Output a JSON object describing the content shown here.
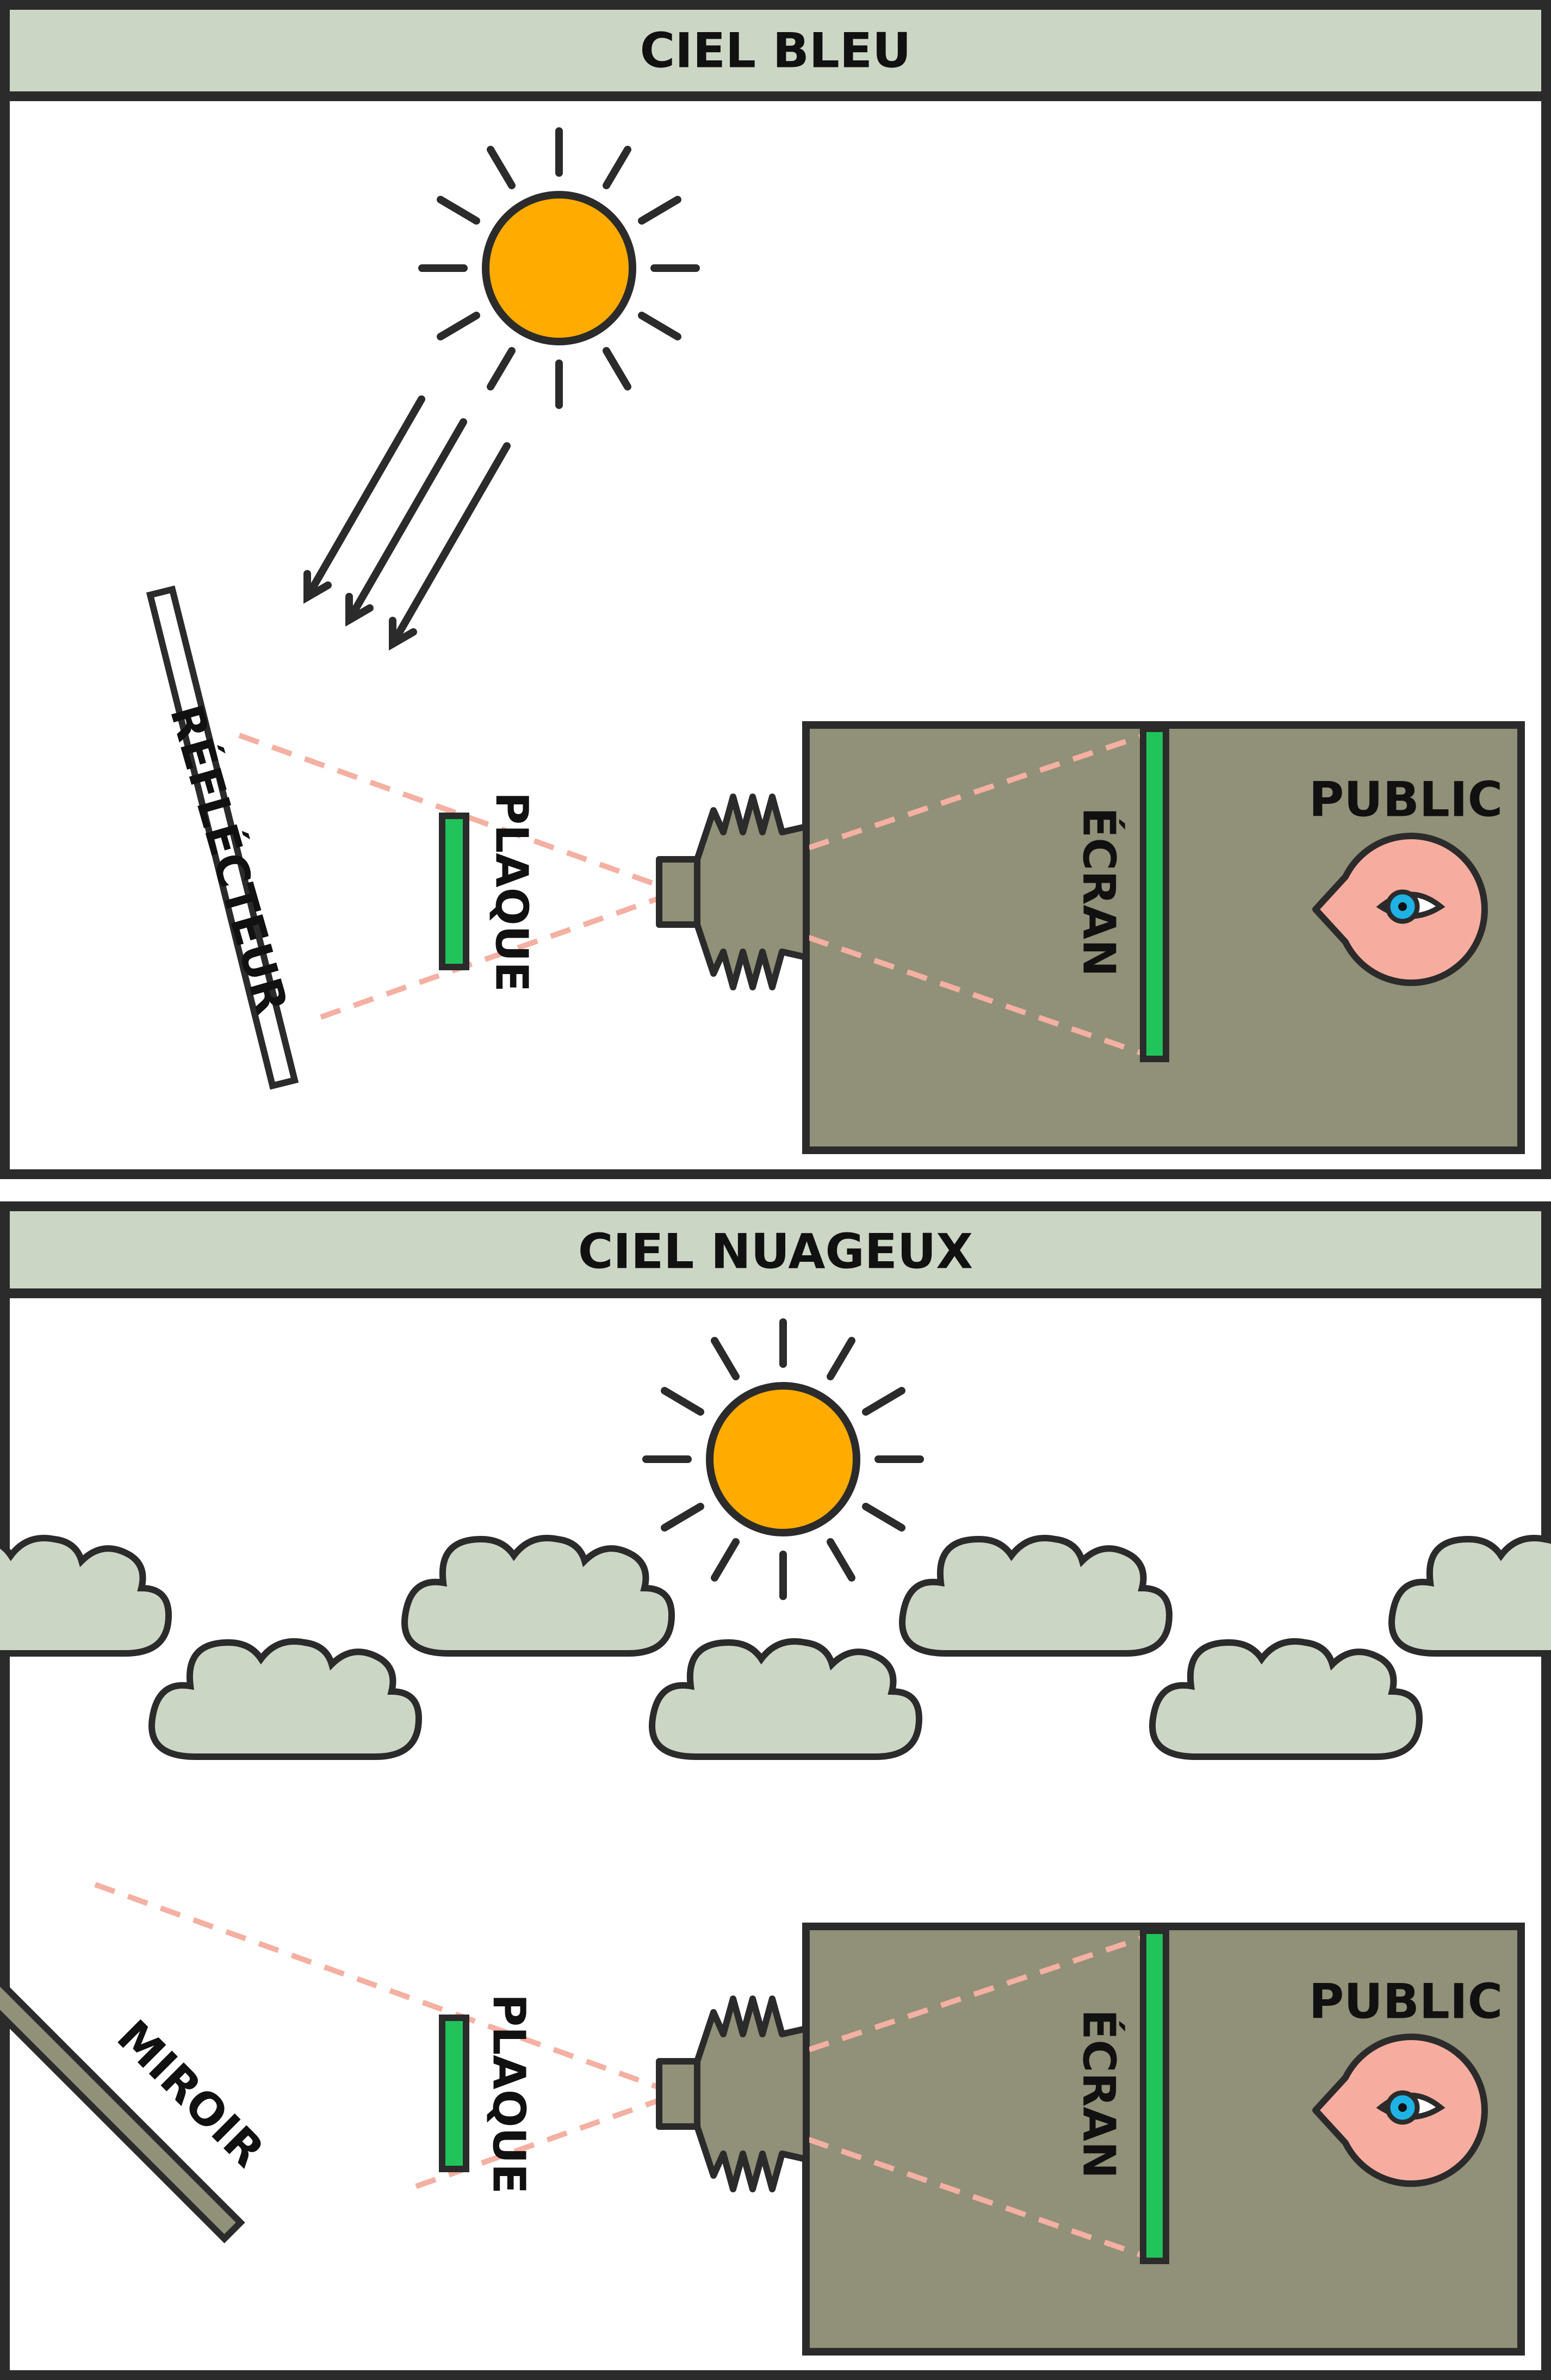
{
  "panels": [
    {
      "title": "CIEL BLEU",
      "labels": {
        "reflector": "RÉFLÉCTEUR",
        "plate": "PLAQUE",
        "screen": "ÉCRAN",
        "audience": "PUBLIC"
      }
    },
    {
      "title": "CIEL NUAGEUX",
      "labels": {
        "mirror": "MIROIR",
        "plate": "PLAQUE",
        "screen": "ÉCRAN",
        "audience": "PUBLIC"
      }
    }
  ],
  "colors": {
    "header": "#ccd6c5",
    "outline": "#2b2b2b",
    "sun": "#ffab00",
    "room": "#919078",
    "screen_and_plate": "#21c45a",
    "light_path": "#f4b0a2",
    "cloud": "#ccd6c5",
    "face": "#f6ad9f",
    "eye_iris": "#1fb2e5"
  },
  "icons": [
    "sun-icon",
    "arrow-icon",
    "cloud-icon",
    "projector-icon",
    "eye-icon"
  ]
}
